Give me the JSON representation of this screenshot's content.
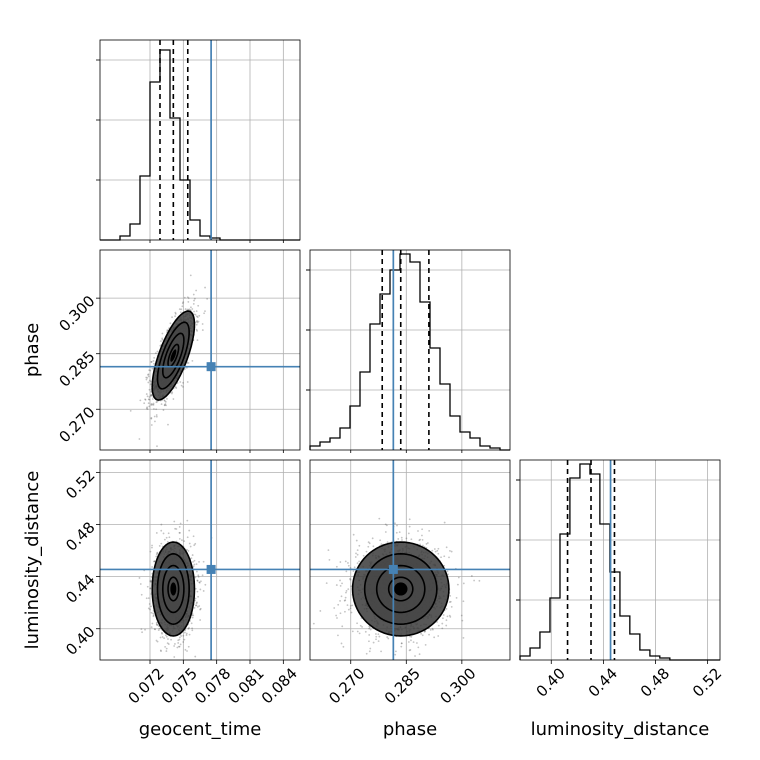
{
  "truth_color": "#4682b4",
  "chart_data": {
    "type": "corner",
    "parameters": [
      {
        "name": "geocent_time",
        "label": "geocent_time",
        "range": [
          0.0675,
          0.0855
        ],
        "ticks": [
          "0.072",
          "0.075",
          "0.078",
          "0.081",
          "0.084"
        ],
        "tick_values": [
          0.072,
          0.075,
          0.078,
          0.081,
          0.084
        ]
      },
      {
        "name": "phase",
        "label": "phase",
        "range": [
          0.259,
          0.313
        ],
        "ticks": [
          "0.270",
          "0.285",
          "0.300"
        ],
        "tick_values": [
          0.27,
          0.285,
          0.3
        ]
      },
      {
        "name": "luminosity_distance",
        "label": "luminosity_distance",
        "range": [
          0.376,
          0.5295
        ],
        "ticks": [
          "0.40",
          "0.44",
          "0.48",
          "0.52"
        ],
        "tick_values": [
          0.4,
          0.44,
          0.48,
          0.52
        ]
      }
    ],
    "truths": {
      "geocent_time": 0.0775,
      "phase": 0.2815,
      "luminosity_distance": 0.4455
    },
    "quantiles": {
      "geocent_time": [
        0.0729,
        0.0741,
        0.0754
      ],
      "phase": [
        0.2785,
        0.2835,
        0.2911
      ],
      "luminosity_distance": [
        0.4125,
        0.4305,
        0.4485
      ]
    },
    "histograms": {
      "geocent_time": {
        "edges": [
          0.0675,
          0.0684,
          0.0693,
          0.0702,
          0.0711,
          0.072,
          0.0729,
          0.0738,
          0.0747,
          0.0756,
          0.0765,
          0.0774,
          0.0783,
          0.0792,
          0.0801,
          0.081,
          0.0819,
          0.0828,
          0.0837,
          0.0846,
          0.0855
        ],
        "counts": [
          0,
          0,
          0.02,
          0.08,
          0.32,
          0.79,
          0.95,
          0.61,
          0.3,
          0.1,
          0.02,
          0.01,
          0,
          0,
          0,
          0,
          0,
          0,
          0,
          0
        ]
      },
      "phase": {
        "edges": [
          0.259,
          0.2617,
          0.2644,
          0.2671,
          0.2698,
          0.2725,
          0.2752,
          0.2779,
          0.2806,
          0.2833,
          0.286,
          0.2887,
          0.2914,
          0.2941,
          0.2968,
          0.2995,
          0.3022,
          0.3049,
          0.3076,
          0.3103,
          0.313
        ],
        "counts": [
          0.02,
          0.04,
          0.06,
          0.11,
          0.22,
          0.39,
          0.63,
          0.78,
          0.9,
          0.98,
          0.94,
          0.74,
          0.51,
          0.33,
          0.17,
          0.09,
          0.06,
          0.02,
          0.01,
          0
        ]
      },
      "luminosity_distance": {
        "edges": [
          0.376,
          0.3837,
          0.3913,
          0.399,
          0.4067,
          0.4143,
          0.422,
          0.4297,
          0.4373,
          0.445,
          0.4527,
          0.4603,
          0.468,
          0.4757,
          0.4833,
          0.491,
          0.4987,
          0.5063,
          0.514,
          0.5217,
          0.5295
        ],
        "counts": [
          0.02,
          0.06,
          0.14,
          0.31,
          0.63,
          0.91,
          0.98,
          0.93,
          0.68,
          0.44,
          0.22,
          0.13,
          0.05,
          0.02,
          0.01,
          0,
          0,
          0,
          0,
          0
        ]
      }
    },
    "contour_levels": [
      0.118,
      0.393,
      0.675,
      0.865
    ],
    "gaussian_fits": {
      "geocent_time|phase": {
        "mean": [
          0.0741,
          0.2845
        ],
        "sd": [
          0.00095,
          0.006
        ],
        "rho": 0.7
      },
      "geocent_time|luminosity_distance": {
        "mean": [
          0.0741,
          0.4305
        ],
        "sd": [
          0.00095,
          0.018
        ],
        "rho": 0.0
      },
      "phase|luminosity_distance": {
        "mean": [
          0.2835,
          0.4305
        ],
        "sd": [
          0.0065,
          0.018
        ],
        "rho": 0.0
      }
    },
    "grid": true
  }
}
